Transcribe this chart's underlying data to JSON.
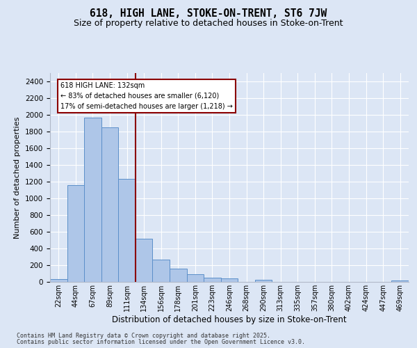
{
  "title1": "618, HIGH LANE, STOKE-ON-TRENT, ST6 7JW",
  "title2": "Size of property relative to detached houses in Stoke-on-Trent",
  "xlabel": "Distribution of detached houses by size in Stoke-on-Trent",
  "ylabel": "Number of detached properties",
  "categories": [
    "22sqm",
    "44sqm",
    "67sqm",
    "89sqm",
    "111sqm",
    "134sqm",
    "156sqm",
    "178sqm",
    "201sqm",
    "223sqm",
    "246sqm",
    "268sqm",
    "290sqm",
    "313sqm",
    "335sqm",
    "357sqm",
    "380sqm",
    "402sqm",
    "424sqm",
    "447sqm",
    "469sqm"
  ],
  "values": [
    30,
    1160,
    1970,
    1850,
    1230,
    520,
    270,
    160,
    90,
    48,
    38,
    0,
    22,
    0,
    0,
    0,
    0,
    0,
    0,
    0,
    20
  ],
  "bar_color": "#aec6e8",
  "bar_edge_color": "#5b8fc9",
  "vline_pos": 4.5,
  "vline_color": "#8b0000",
  "annotation_text": "618 HIGH LANE: 132sqm\n← 83% of detached houses are smaller (6,120)\n17% of semi-detached houses are larger (1,218) →",
  "annot_box_color": "#8b0000",
  "ylim": [
    0,
    2500
  ],
  "yticks": [
    0,
    200,
    400,
    600,
    800,
    1000,
    1200,
    1400,
    1600,
    1800,
    2000,
    2200,
    2400
  ],
  "plot_bg": "#dce6f5",
  "fig_bg": "#dce6f5",
  "grid_color": "#ffffff",
  "footer1": "Contains HM Land Registry data © Crown copyright and database right 2025.",
  "footer2": "Contains public sector information licensed under the Open Government Licence v3.0."
}
